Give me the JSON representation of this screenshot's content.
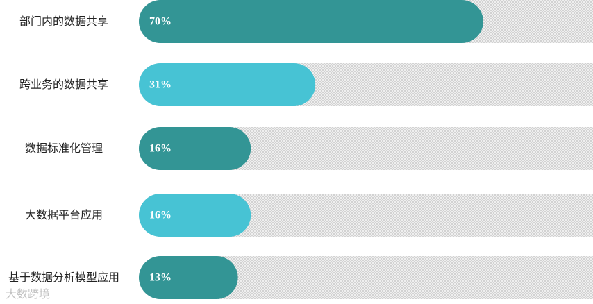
{
  "chart_data": {
    "type": "bar",
    "orientation": "horizontal",
    "categories": [
      "部门内的数据共享",
      "跨业务的数据共享",
      "数据标准化管理",
      "大数据平台应用",
      "基于数据分析模型应用"
    ],
    "values": [
      70,
      31,
      16,
      16,
      13
    ],
    "value_labels": [
      "70%",
      "31%",
      "16%",
      "16%",
      "13%"
    ],
    "colors": [
      "#339595",
      "#47c3d4",
      "#339595",
      "#47c3d4",
      "#339595"
    ],
    "xlim": [
      0,
      100
    ],
    "watermark": "大数跨境"
  }
}
